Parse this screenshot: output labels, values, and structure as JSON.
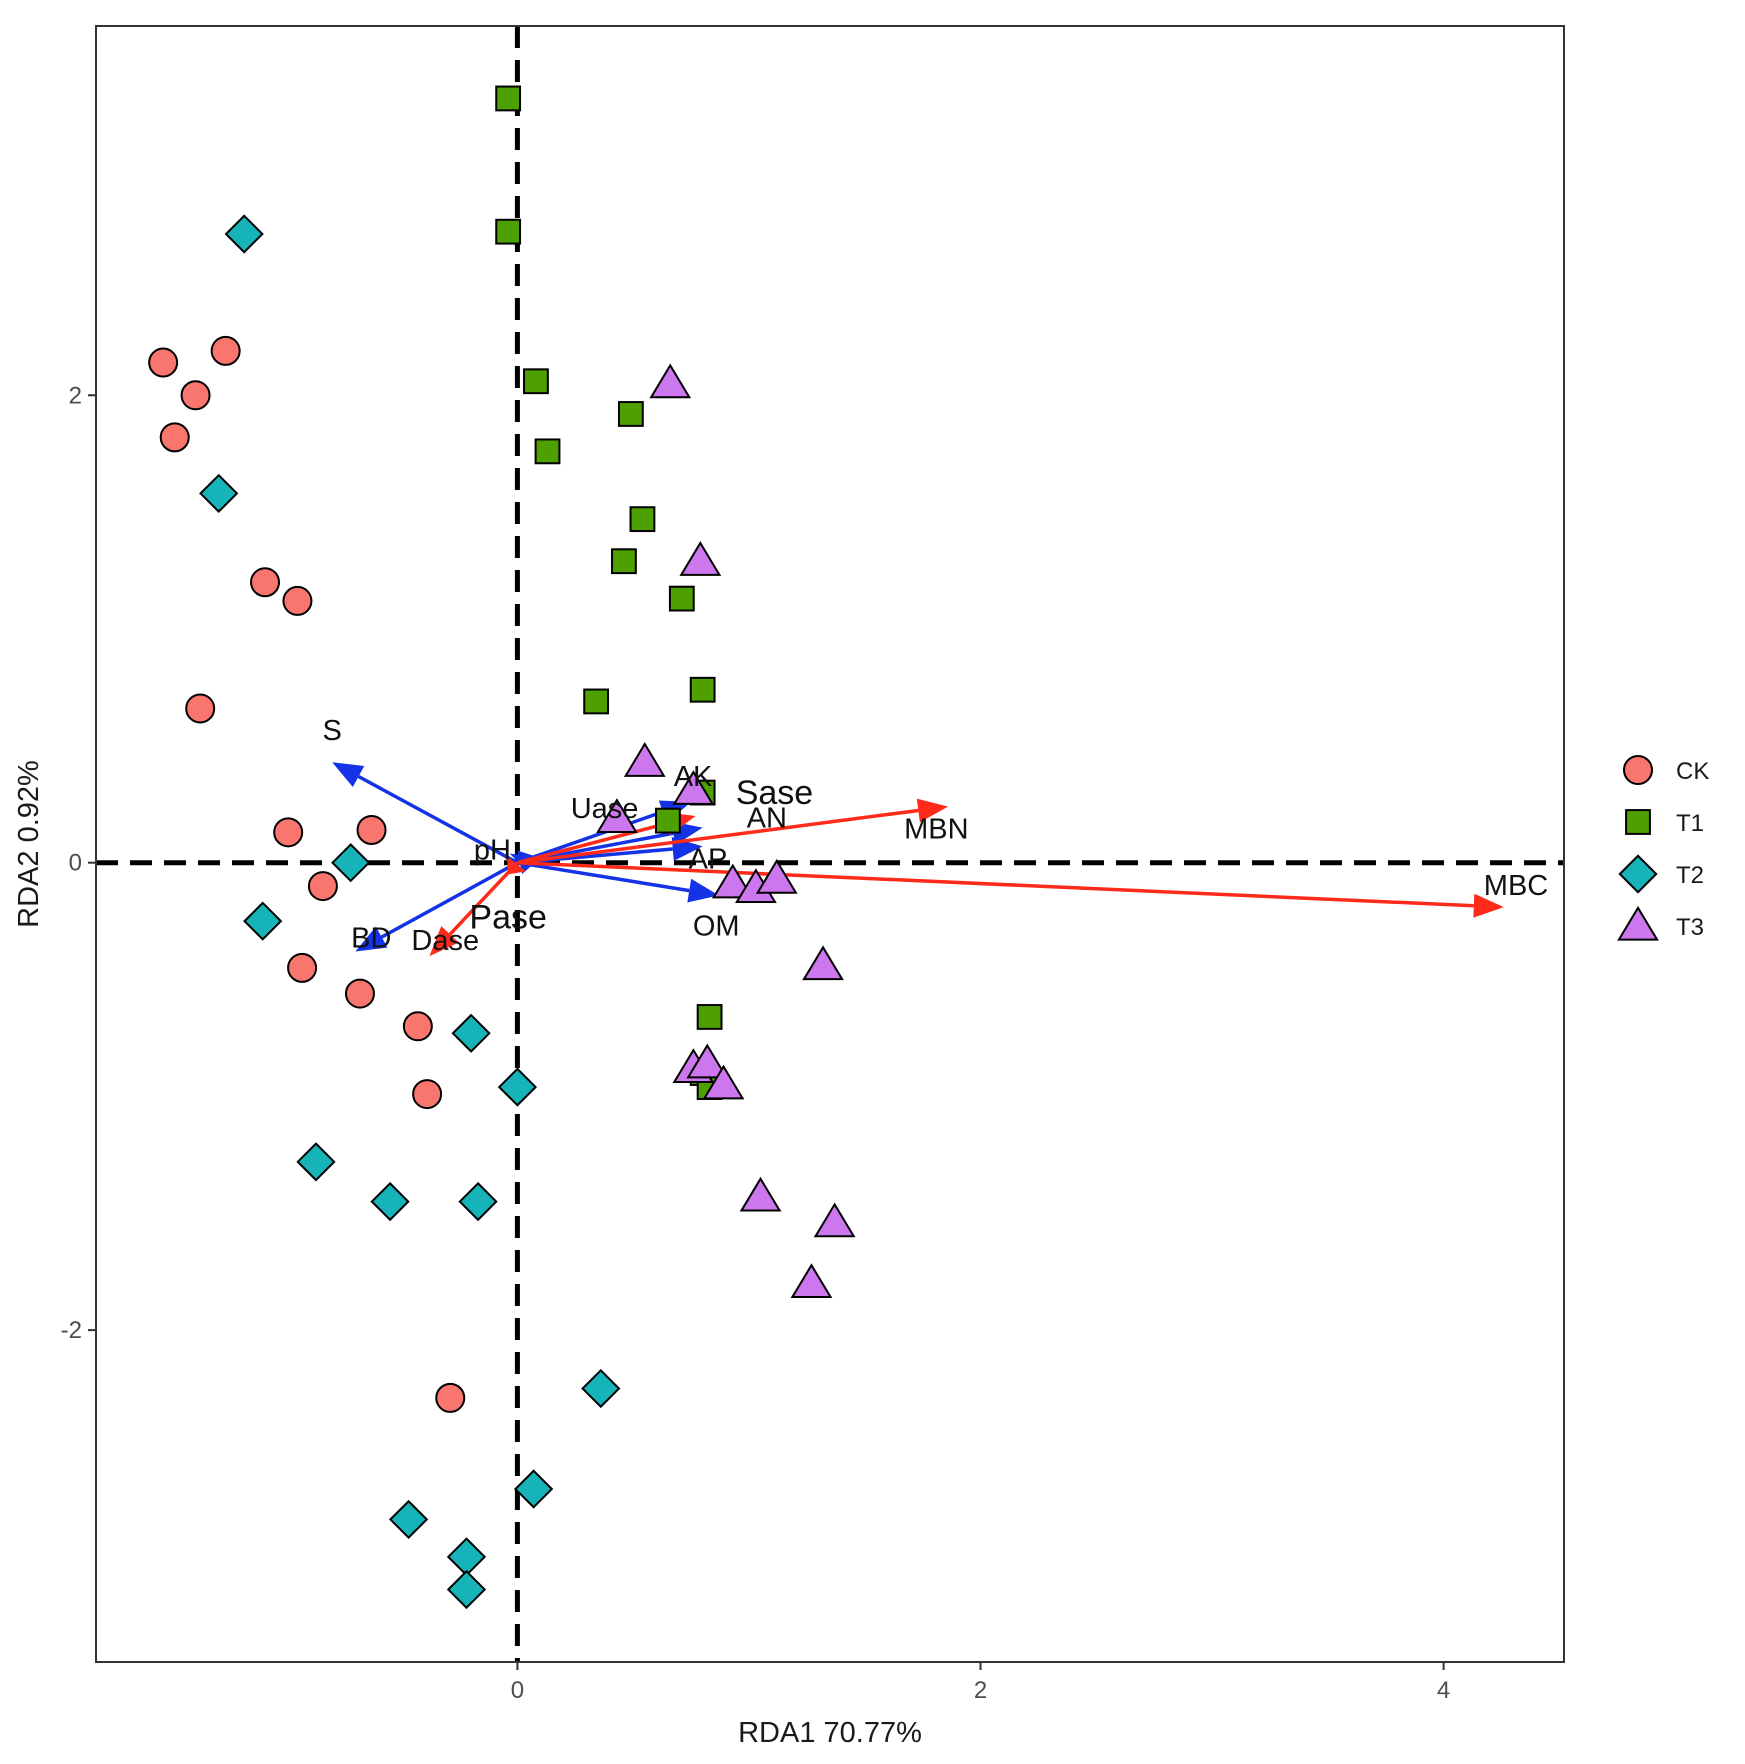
{
  "chart_data": {
    "type": "scatter",
    "subtype": "RDA biplot",
    "title": "",
    "xlabel": "RDA1 70.77%",
    "ylabel": "RDA2 0.92%",
    "xlim": [
      -1.82,
      4.52
    ],
    "ylim": [
      -3.42,
      3.58
    ],
    "x_ticks": [
      0,
      2,
      4
    ],
    "y_ticks": [
      -2,
      0,
      2
    ],
    "grid": false,
    "reference_lines": {
      "x": 0,
      "y": 0,
      "style": "dashed"
    },
    "legend_position": "right",
    "series": [
      {
        "name": "CK",
        "marker": "circle",
        "color": "#F8766D",
        "points": [
          [
            -1.53,
            2.14
          ],
          [
            -1.39,
            2.0
          ],
          [
            -1.48,
            1.82
          ],
          [
            -1.26,
            2.19
          ],
          [
            -1.09,
            1.2
          ],
          [
            -0.95,
            1.12
          ],
          [
            -1.37,
            0.66
          ],
          [
            -0.99,
            0.13
          ],
          [
            -0.63,
            0.14
          ],
          [
            -0.84,
            -0.1
          ],
          [
            -0.93,
            -0.45
          ],
          [
            -0.68,
            -0.56
          ],
          [
            -0.43,
            -0.7
          ],
          [
            -0.39,
            -0.99
          ],
          [
            -0.29,
            -2.29
          ]
        ]
      },
      {
        "name": "T1",
        "marker": "square",
        "color": "#4DA000",
        "points": [
          [
            -0.04,
            3.27
          ],
          [
            -0.04,
            2.7
          ],
          [
            0.08,
            2.06
          ],
          [
            0.13,
            1.76
          ],
          [
            0.49,
            1.92
          ],
          [
            0.54,
            1.47
          ],
          [
            0.46,
            1.29
          ],
          [
            0.71,
            1.13
          ],
          [
            0.34,
            0.69
          ],
          [
            0.8,
            0.74
          ],
          [
            0.8,
            0.3
          ],
          [
            0.65,
            0.18
          ],
          [
            0.83,
            -0.66
          ],
          [
            0.8,
            -0.9
          ],
          [
            0.83,
            -0.96
          ]
        ]
      },
      {
        "name": "T2",
        "marker": "diamond",
        "color": "#16B3B8",
        "points": [
          [
            -1.18,
            2.69
          ],
          [
            -1.29,
            1.58
          ],
          [
            -0.72,
            0.0
          ],
          [
            -1.1,
            -0.25
          ],
          [
            -0.2,
            -0.73
          ],
          [
            0.0,
            -0.96
          ],
          [
            -0.87,
            -1.28
          ],
          [
            -0.55,
            -1.45
          ],
          [
            -0.17,
            -1.45
          ],
          [
            0.36,
            -2.25
          ],
          [
            0.07,
            -2.68
          ],
          [
            -0.47,
            -2.81
          ],
          [
            -0.22,
            -2.97
          ],
          [
            -0.22,
            -3.11
          ]
        ]
      },
      {
        "name": "T3",
        "marker": "triangle",
        "color": "#CC77EE",
        "points": [
          [
            0.66,
            2.05
          ],
          [
            0.79,
            1.29
          ],
          [
            0.55,
            0.43
          ],
          [
            0.43,
            0.19
          ],
          [
            0.76,
            0.31
          ],
          [
            0.93,
            -0.09
          ],
          [
            1.03,
            -0.11
          ],
          [
            1.12,
            -0.07
          ],
          [
            1.32,
            -0.44
          ],
          [
            0.76,
            -0.88
          ],
          [
            0.82,
            -0.86
          ],
          [
            0.89,
            -0.95
          ],
          [
            1.05,
            -1.43
          ],
          [
            1.37,
            -1.54
          ],
          [
            1.27,
            -1.8
          ]
        ]
      }
    ],
    "vectors": [
      {
        "name": "S",
        "x": -0.8,
        "y": 0.43,
        "color": "#1432E6",
        "label": "S"
      },
      {
        "name": "BD",
        "x": -0.7,
        "y": -0.38,
        "color": "#1432E6",
        "label": "BD"
      },
      {
        "name": "pH",
        "x": 0.03,
        "y": 0.03,
        "color": "#1432E6",
        "label": "pH"
      },
      {
        "name": "Uase",
        "x": 0.1,
        "y": 0.02,
        "color": "#1432E6",
        "label": "Uase"
      },
      {
        "name": "AK",
        "x": 0.75,
        "y": 0.26,
        "color": "#1432E6",
        "label": "AK"
      },
      {
        "name": "AN",
        "x": 0.8,
        "y": 0.15,
        "color": "#1432E6",
        "label": "AN"
      },
      {
        "name": "AP",
        "x": 0.8,
        "y": 0.07,
        "color": "#1432E6",
        "label": "AP"
      },
      {
        "name": "OM",
        "x": 0.87,
        "y": -0.14,
        "color": "#1432E6",
        "label": "OM"
      },
      {
        "name": "Sase",
        "x": 0.77,
        "y": 0.2,
        "color": "#FF2A1A",
        "label": "Sase"
      },
      {
        "name": "MBN",
        "x": 1.86,
        "y": 0.24,
        "color": "#FF2A1A",
        "label": "MBN"
      },
      {
        "name": "MBC",
        "x": 4.26,
        "y": -0.19,
        "color": "#FF2A1A",
        "label": "MBC"
      },
      {
        "name": "Dase",
        "x": -0.38,
        "y": -0.4,
        "color": "#FF2A1A",
        "label": "Dase"
      },
      {
        "name": "Pase",
        "x": -0.04,
        "y": -0.05,
        "color": "#FF2A1A",
        "label": "Pase"
      }
    ]
  }
}
